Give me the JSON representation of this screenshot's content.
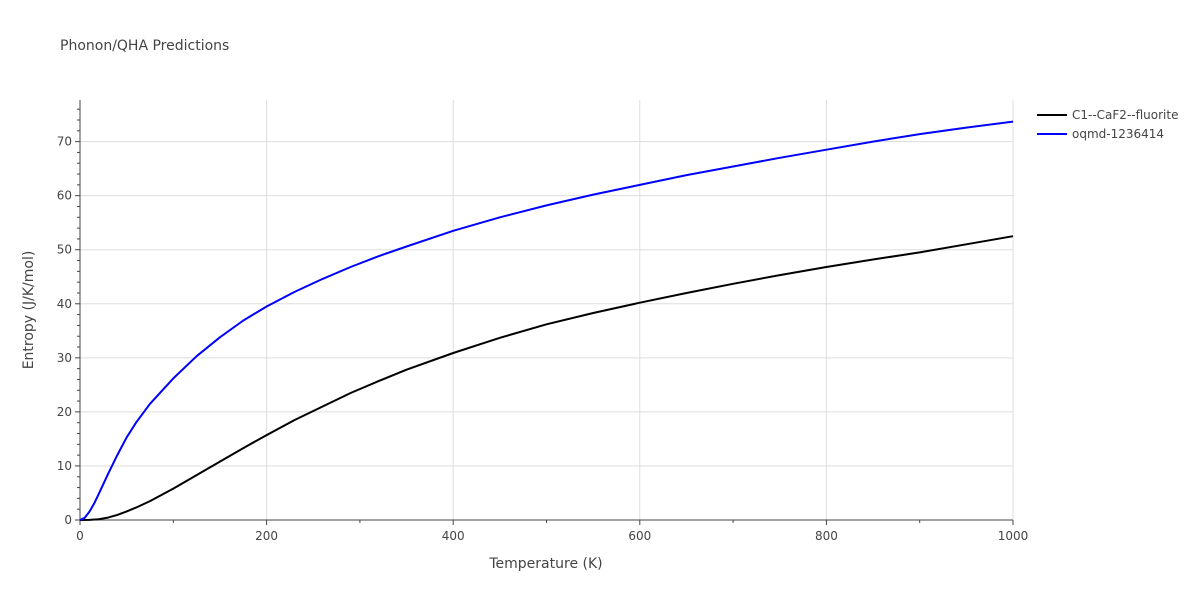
{
  "chart_data": {
    "type": "line",
    "title": "Phonon/QHA Predictions",
    "xlabel": "Temperature (K)",
    "ylabel": "Entropy (J/K/mol)",
    "xlim": [
      0,
      1000
    ],
    "ylim": [
      0,
      77.7
    ],
    "x_ticks": [
      0,
      200,
      400,
      600,
      800,
      1000
    ],
    "y_ticks": [
      0,
      10,
      20,
      30,
      40,
      50,
      60,
      70
    ],
    "grid": true,
    "legend_position": "top-right",
    "series": [
      {
        "name": "C1--CaF2--fluorite",
        "color": "#000000",
        "x": [
          0,
          10,
          20,
          30,
          40,
          50,
          60,
          75,
          100,
          125,
          150,
          175,
          200,
          230,
          260,
          290,
          320,
          350,
          400,
          450,
          500,
          550,
          600,
          650,
          700,
          750,
          800,
          850,
          900,
          950,
          1000
        ],
        "y": [
          0,
          0.02,
          0.15,
          0.45,
          0.95,
          1.6,
          2.3,
          3.5,
          5.8,
          8.3,
          10.8,
          13.3,
          15.7,
          18.5,
          21.0,
          23.5,
          25.7,
          27.8,
          30.9,
          33.7,
          36.2,
          38.3,
          40.2,
          42.0,
          43.7,
          45.3,
          46.8,
          48.2,
          49.5,
          51.0,
          52.5
        ]
      },
      {
        "name": "oqmd-1236414",
        "color": "#0000ff",
        "x": [
          0,
          5,
          10,
          15,
          20,
          30,
          40,
          50,
          60,
          75,
          100,
          125,
          150,
          175,
          200,
          230,
          260,
          290,
          320,
          350,
          400,
          450,
          500,
          550,
          600,
          650,
          700,
          750,
          800,
          850,
          900,
          950,
          1000
        ],
        "y": [
          0,
          0.4,
          1.5,
          3.0,
          4.8,
          8.5,
          12.0,
          15.3,
          18.0,
          21.5,
          26.2,
          30.3,
          33.8,
          36.9,
          39.5,
          42.2,
          44.6,
          46.8,
          48.8,
          50.6,
          53.5,
          56.0,
          58.2,
          60.2,
          62.0,
          63.8,
          65.4,
          67.0,
          68.5,
          70.0,
          71.4,
          72.6,
          73.7
        ]
      }
    ]
  }
}
